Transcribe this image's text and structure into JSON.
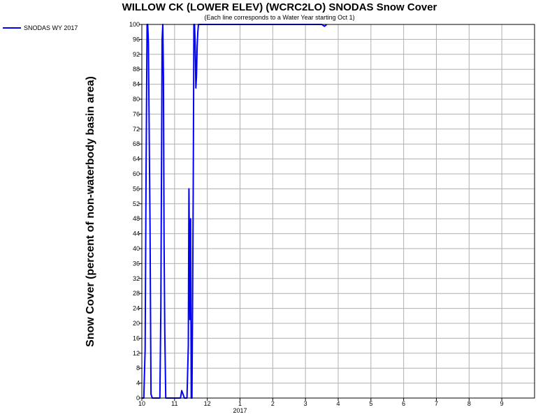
{
  "chart_data": {
    "type": "line",
    "title": "WILLOW CK (LOWER ELEV) (WCRC2LO) SNODAS Snow Cover",
    "subtitle": "(Each line corresponds to a Water Year starting Oct 1)",
    "ylabel": "Snow Cover (percent of non-waterbody basin area)",
    "xlabel": "",
    "ylim": [
      0,
      100
    ],
    "yticks": [
      0,
      4,
      8,
      12,
      16,
      20,
      24,
      28,
      32,
      36,
      40,
      44,
      48,
      52,
      56,
      60,
      64,
      68,
      72,
      76,
      80,
      84,
      88,
      92,
      96,
      100
    ],
    "xlim": [
      0,
      12
    ],
    "xticks": [
      {
        "value": 0,
        "label": "10"
      },
      {
        "value": 1,
        "label": "11"
      },
      {
        "value": 2,
        "label": "12"
      },
      {
        "value": 3,
        "label": "1"
      },
      {
        "value": 4,
        "label": "2"
      },
      {
        "value": 5,
        "label": "3"
      },
      {
        "value": 6,
        "label": "4"
      },
      {
        "value": 7,
        "label": "5"
      },
      {
        "value": 8,
        "label": "6"
      },
      {
        "value": 9,
        "label": "7"
      },
      {
        "value": 10,
        "label": "8"
      },
      {
        "value": 11,
        "label": "9"
      }
    ],
    "year_label": "2017",
    "grid": true,
    "legend_position": "top-left",
    "series": [
      {
        "name": "SNODAS WY 2017",
        "color": "#0000ff",
        "points": [
          [
            0.0,
            0
          ],
          [
            0.06,
            0
          ],
          [
            0.1,
            13
          ],
          [
            0.13,
            62
          ],
          [
            0.16,
            100
          ],
          [
            0.18,
            100
          ],
          [
            0.2,
            95
          ],
          [
            0.22,
            76
          ],
          [
            0.25,
            46
          ],
          [
            0.28,
            1
          ],
          [
            0.32,
            0
          ],
          [
            0.45,
            0
          ],
          [
            0.55,
            0
          ],
          [
            0.58,
            24
          ],
          [
            0.6,
            60
          ],
          [
            0.62,
            96
          ],
          [
            0.64,
            100
          ],
          [
            0.66,
            86
          ],
          [
            0.68,
            42
          ],
          [
            0.7,
            18
          ],
          [
            0.73,
            0
          ],
          [
            0.95,
            0
          ],
          [
            1.0,
            0
          ],
          [
            1.1,
            0
          ],
          [
            1.18,
            0
          ],
          [
            1.22,
            2
          ],
          [
            1.26,
            1
          ],
          [
            1.3,
            0
          ],
          [
            1.38,
            0
          ],
          [
            1.42,
            14
          ],
          [
            1.44,
            56
          ],
          [
            1.47,
            21
          ],
          [
            1.49,
            48
          ],
          [
            1.51,
            0
          ],
          [
            1.53,
            0
          ],
          [
            1.55,
            25
          ],
          [
            1.57,
            55
          ],
          [
            1.59,
            100
          ],
          [
            1.61,
            100
          ],
          [
            1.63,
            95
          ],
          [
            1.65,
            83
          ],
          [
            1.67,
            86
          ],
          [
            1.69,
            94
          ],
          [
            1.71,
            98
          ],
          [
            1.73,
            100
          ],
          [
            1.75,
            100
          ],
          [
            1.8,
            100
          ],
          [
            2.0,
            100
          ],
          [
            2.5,
            100
          ],
          [
            3.0,
            100
          ],
          [
            3.5,
            100
          ],
          [
            5.5,
            100
          ],
          [
            5.58,
            99.5
          ],
          [
            5.65,
            100
          ]
        ]
      }
    ]
  }
}
